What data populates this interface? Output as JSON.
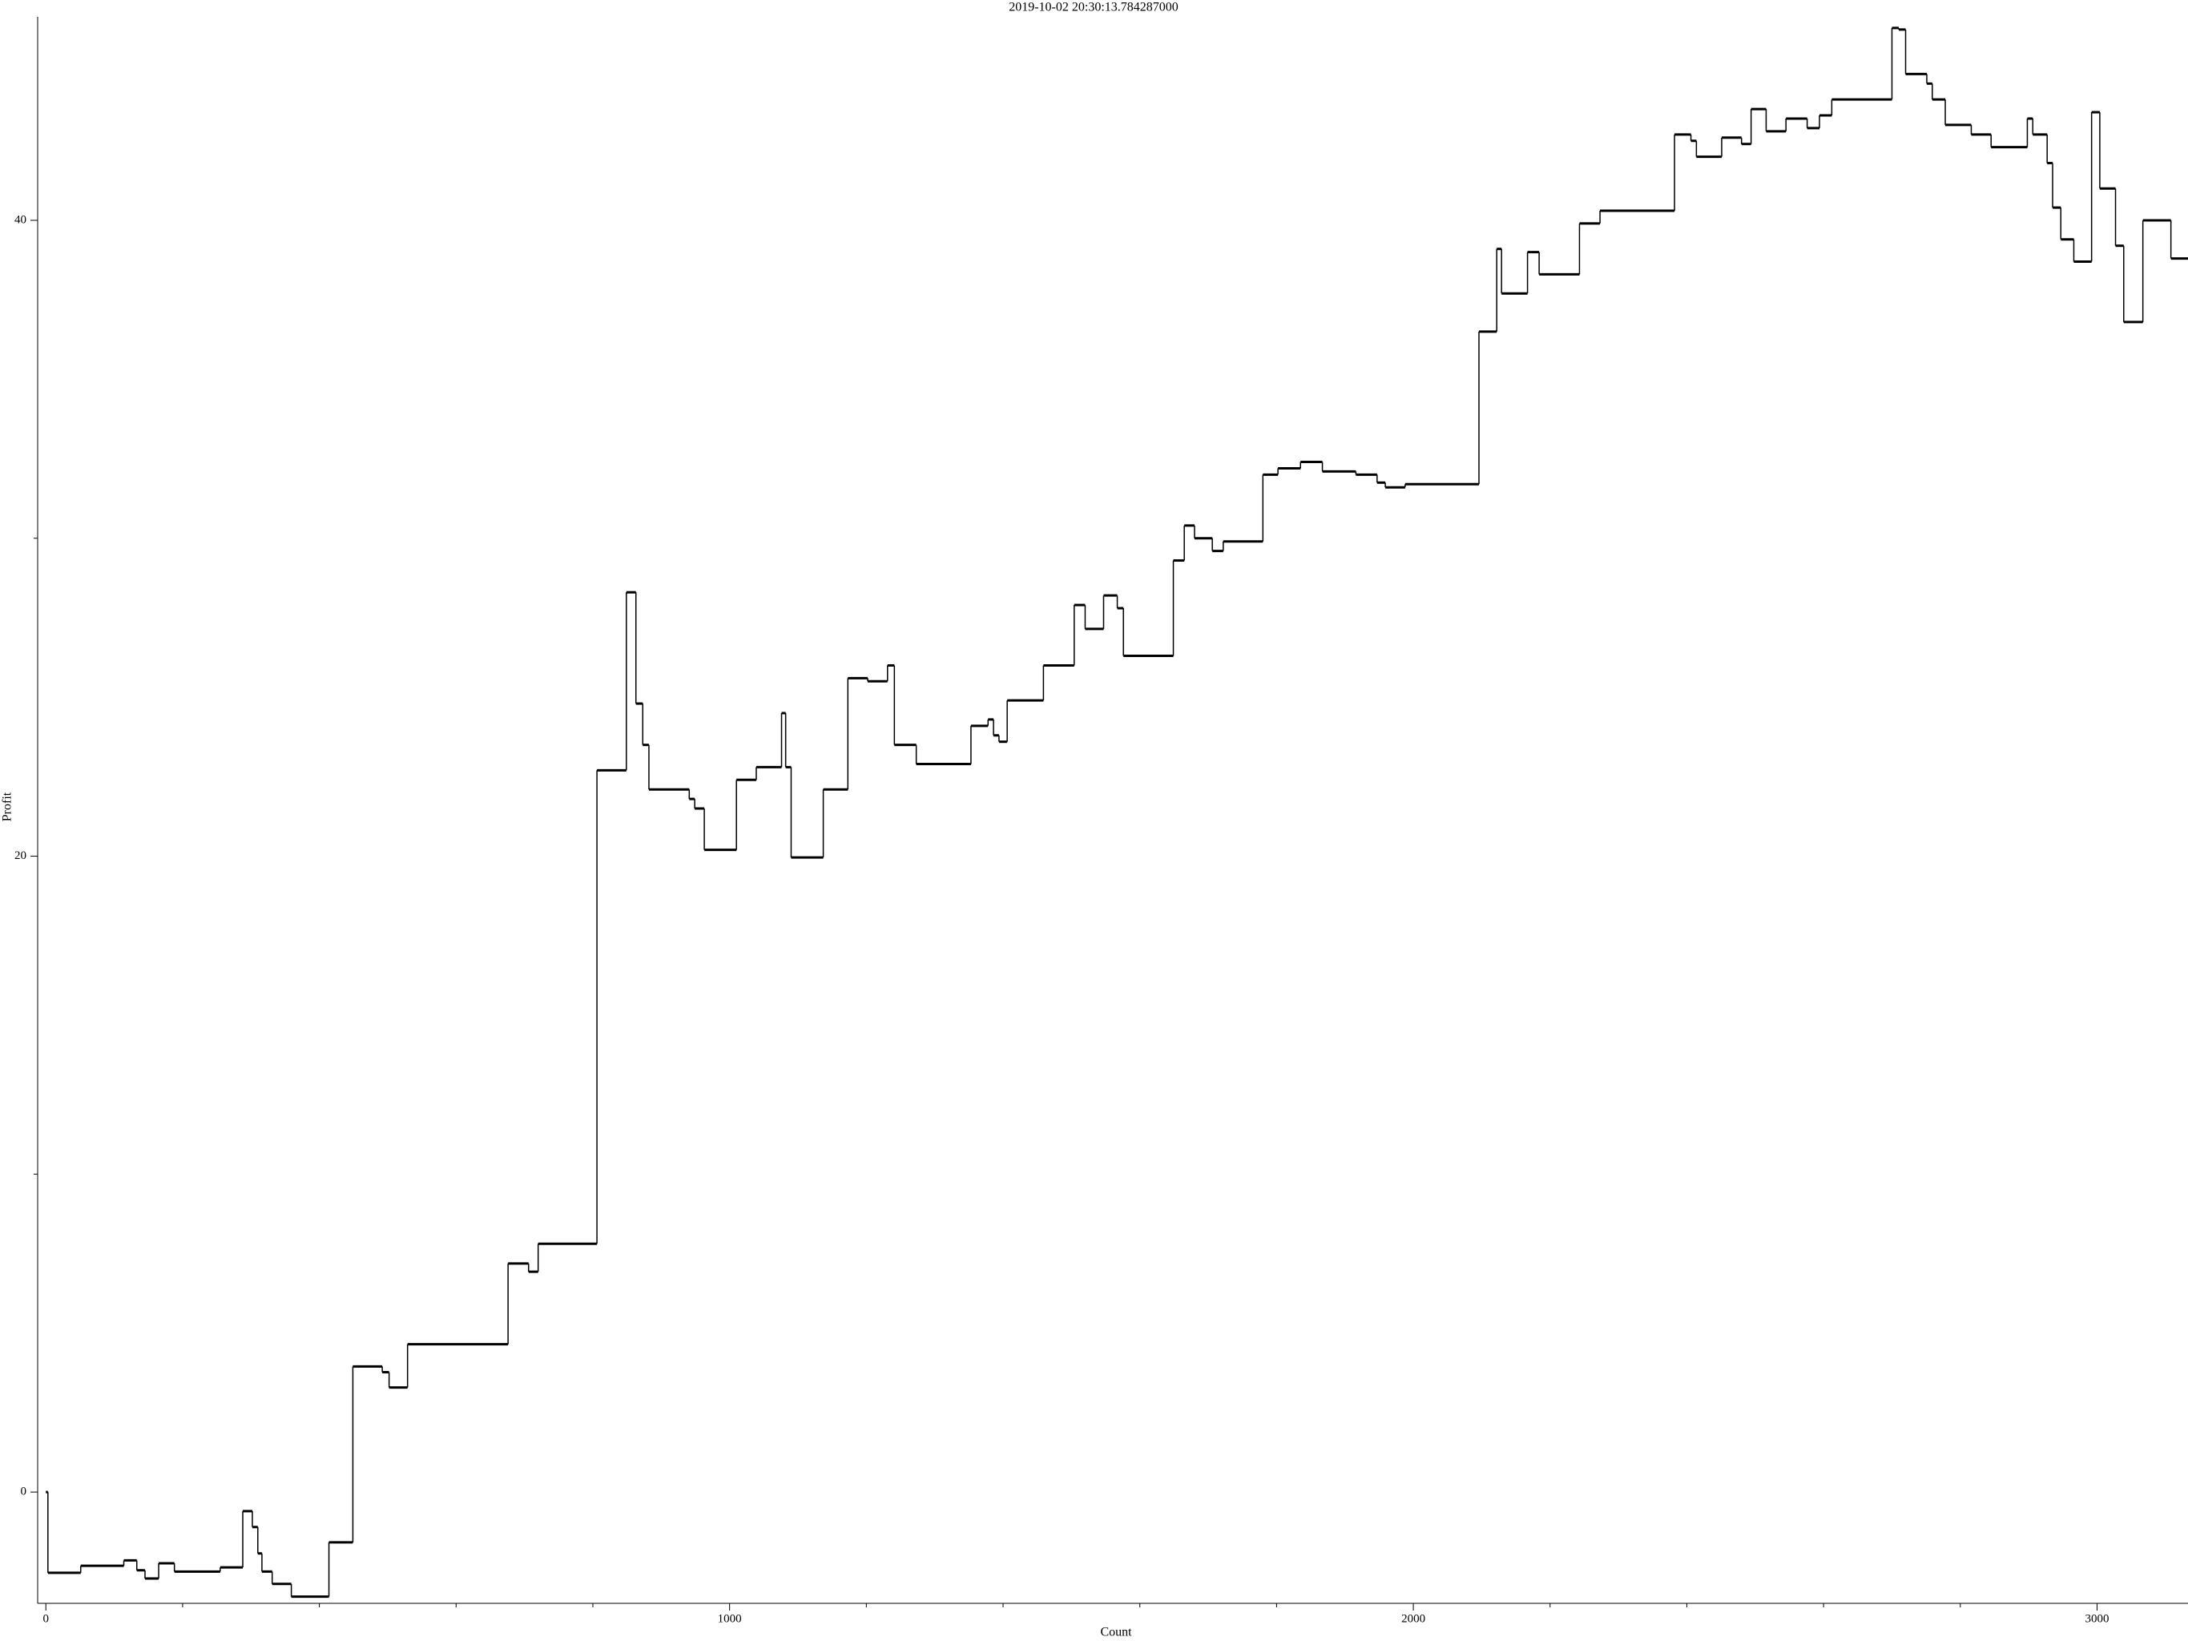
{
  "chart_data": {
    "type": "line",
    "drawstyle": "steps-post",
    "title": "2019-10-02 20:30:13.784287000",
    "x_label": "Count",
    "y_label": "Profit",
    "color": "#000000",
    "xlim": [
      -12,
      3133
    ],
    "ylim": [
      -3.5,
      46.4
    ],
    "xticks": [
      0,
      1000,
      2000,
      3000
    ],
    "yticks": [
      0,
      20,
      40
    ],
    "x_minor_ticks": [
      200,
      400,
      600,
      800,
      1200,
      1400,
      1600,
      1800,
      2200,
      2400,
      2600,
      2800
    ],
    "y_minor_ticks": [
      10,
      30
    ],
    "x": [
      0,
      3,
      51,
      114,
      133,
      145,
      165,
      188,
      255,
      288,
      302,
      310,
      316,
      331,
      359,
      414,
      449,
      492,
      502,
      529,
      676,
      706,
      720,
      806,
      849,
      863,
      873,
      882,
      941,
      949,
      963,
      1010,
      1039,
      1076,
      1082,
      1090,
      1137,
      1173,
      1202,
      1231,
      1241,
      1273,
      1353,
      1378,
      1386,
      1394,
      1406,
      1459,
      1504,
      1520,
      1547,
      1567,
      1576,
      1649,
      1665,
      1680,
      1706,
      1722,
      1780,
      1802,
      1835,
      1867,
      1916,
      1947,
      1959,
      1988,
      2096,
      2122,
      2129,
      2167,
      2184,
      2243,
      2273,
      2382,
      2406,
      2414,
      2451,
      2480,
      2494,
      2516,
      2545,
      2576,
      2594,
      2612,
      2700,
      2710,
      2720,
      2751,
      2759,
      2778,
      2816,
      2845,
      2898,
      2906,
      2927,
      2935,
      2947,
      2966,
      2992,
      3004,
      3027,
      3039,
      3067,
      3108,
      3133
    ],
    "y": [
      0,
      -2.54,
      -2.32,
      -2.15,
      -2.46,
      -2.72,
      -2.24,
      -2.5,
      -2.37,
      -0.6,
      -1.1,
      -1.93,
      -2.5,
      -2.89,
      -3.29,
      -1.58,
      3.95,
      3.77,
      3.29,
      4.65,
      7.19,
      6.93,
      7.81,
      22.7,
      28.3,
      24.8,
      23.5,
      22.1,
      21.8,
      21.5,
      20.2,
      22.4,
      22.8,
      24.5,
      22.8,
      19.96,
      22.1,
      25.6,
      25.5,
      26.0,
      23.5,
      22.9,
      24.1,
      24.3,
      23.8,
      23.6,
      24.9,
      26.0,
      27.9,
      27.15,
      28.2,
      27.8,
      26.3,
      29.3,
      30.4,
      30.0,
      29.6,
      29.9,
      32.0,
      32.2,
      32.4,
      32.1,
      32.0,
      31.75,
      31.6,
      31.7,
      36.5,
      39.1,
      37.7,
      39.0,
      38.3,
      39.9,
      40.3,
      42.7,
      42.5,
      42.0,
      42.6,
      42.4,
      43.5,
      42.8,
      43.2,
      42.9,
      43.3,
      43.8,
      46.05,
      46.0,
      44.6,
      44.3,
      43.8,
      43.0,
      42.7,
      42.3,
      43.2,
      42.7,
      41.8,
      40.4,
      39.4,
      38.7,
      43.4,
      41.0,
      39.2,
      36.8,
      40.0,
      38.8,
      38.8
    ]
  }
}
